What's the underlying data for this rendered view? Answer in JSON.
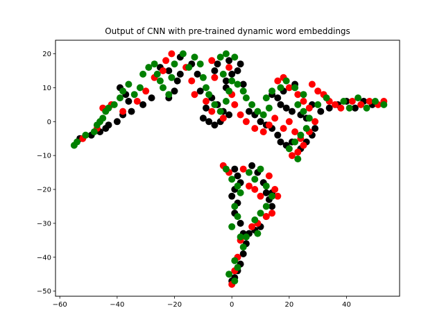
{
  "chart_data": {
    "type": "scatter",
    "title": "Output of CNN with pre-trained dynamic word embeddings",
    "xlabel": "",
    "ylabel": "",
    "xlim": [
      -61.5,
      58.5
    ],
    "ylim": [
      -51.5,
      24
    ],
    "xticks": [
      -60,
      -40,
      -20,
      0,
      20,
      40
    ],
    "yticks": [
      -50,
      -40,
      -30,
      -20,
      -10,
      0,
      10,
      20
    ],
    "grid": false,
    "legend": false,
    "series": [
      {
        "color": "#000000",
        "points": [
          [
            -53,
            -5
          ],
          [
            -49,
            -4
          ],
          [
            -46,
            -3
          ],
          [
            -44,
            -2
          ],
          [
            -43,
            -1
          ],
          [
            -40,
            0
          ],
          [
            -38,
            2
          ],
          [
            -35,
            3
          ],
          [
            -36,
            6
          ],
          [
            -37,
            8
          ],
          [
            -39,
            10
          ],
          [
            -31,
            5
          ],
          [
            -28,
            7
          ],
          [
            -22,
            7
          ],
          [
            -20,
            9
          ],
          [
            -19,
            12
          ],
          [
            -18,
            14
          ],
          [
            -22,
            15
          ],
          [
            -25,
            16
          ],
          [
            -18,
            19
          ],
          [
            -14,
            17
          ],
          [
            -12,
            14
          ],
          [
            -11,
            9
          ],
          [
            -7,
            7
          ],
          [
            -5,
            5
          ],
          [
            -3,
            3
          ],
          [
            -1,
            2
          ],
          [
            -4,
            0
          ],
          [
            -6,
            -1
          ],
          [
            -8,
            0
          ],
          [
            -10,
            1
          ],
          [
            -9,
            4
          ],
          [
            -2,
            10
          ],
          [
            -2,
            12
          ],
          [
            0,
            14
          ],
          [
            2,
            15
          ],
          [
            3,
            17
          ],
          [
            -1,
            18
          ],
          [
            -5,
            17
          ],
          [
            -6,
            15
          ],
          [
            4,
            11
          ],
          [
            6,
            3
          ],
          [
            8,
            2
          ],
          [
            10,
            0
          ],
          [
            12,
            -1
          ],
          [
            14,
            -2
          ],
          [
            16,
            -4
          ],
          [
            17,
            -6
          ],
          [
            19,
            -7
          ],
          [
            21,
            -6
          ],
          [
            24,
            -8
          ],
          [
            26,
            -6
          ],
          [
            28,
            -4
          ],
          [
            26,
            1
          ],
          [
            24,
            2
          ],
          [
            21,
            3
          ],
          [
            19,
            4
          ],
          [
            17,
            5
          ],
          [
            16,
            7
          ],
          [
            14,
            8
          ],
          [
            18,
            9
          ],
          [
            22,
            11
          ],
          [
            28,
            5
          ],
          [
            31,
            3
          ],
          [
            34,
            4
          ],
          [
            37,
            5
          ],
          [
            40,
            6
          ],
          [
            43,
            4
          ],
          [
            46,
            6
          ],
          [
            49,
            5
          ],
          [
            29,
            -2
          ],
          [
            1,
            -14
          ],
          [
            2,
            -16
          ],
          [
            3,
            -18
          ],
          [
            1,
            -20
          ],
          [
            0,
            -22
          ],
          [
            2,
            -24
          ],
          [
            1,
            -27
          ],
          [
            3,
            -30
          ],
          [
            4,
            -33
          ],
          [
            5,
            -36
          ],
          [
            4,
            -39
          ],
          [
            3,
            -42
          ],
          [
            2,
            -44
          ],
          [
            1,
            -46
          ],
          [
            0,
            -47
          ],
          [
            7,
            -13
          ],
          [
            9,
            -15
          ],
          [
            11,
            -18
          ],
          [
            12,
            -21
          ],
          [
            13,
            -23
          ],
          [
            14,
            -21
          ],
          [
            14,
            -25
          ],
          [
            12,
            -28
          ],
          [
            10,
            -31
          ],
          [
            8,
            -32
          ],
          [
            6,
            -33
          ]
        ]
      },
      {
        "color": "#ff0000",
        "points": [
          [
            -52,
            -5
          ],
          [
            -47,
            -2
          ],
          [
            -45,
            4
          ],
          [
            -42,
            5
          ],
          [
            -38,
            3
          ],
          [
            -33,
            6
          ],
          [
            -30,
            9
          ],
          [
            -27,
            13
          ],
          [
            -24,
            15
          ],
          [
            -23,
            18
          ],
          [
            -21,
            20
          ],
          [
            -16,
            16
          ],
          [
            -14,
            12
          ],
          [
            -13,
            8
          ],
          [
            -9,
            6
          ],
          [
            -7,
            3
          ],
          [
            -3,
            1
          ],
          [
            -7,
            18
          ],
          [
            -6,
            13
          ],
          [
            -1,
            16
          ],
          [
            0,
            8
          ],
          [
            1,
            5
          ],
          [
            3,
            2
          ],
          [
            5,
            0
          ],
          [
            8,
            -2
          ],
          [
            11,
            -3
          ],
          [
            13,
            -1
          ],
          [
            15,
            1
          ],
          [
            18,
            -2
          ],
          [
            20,
            0
          ],
          [
            22,
            -3
          ],
          [
            24,
            -5
          ],
          [
            21,
            -10
          ],
          [
            23,
            -9
          ],
          [
            25,
            -7
          ],
          [
            27,
            -3
          ],
          [
            29,
            0
          ],
          [
            27,
            4
          ],
          [
            25,
            6
          ],
          [
            23,
            8
          ],
          [
            20,
            10
          ],
          [
            18,
            13
          ],
          [
            16,
            12
          ],
          [
            28,
            11
          ],
          [
            30,
            9
          ],
          [
            32,
            8
          ],
          [
            34,
            6
          ],
          [
            36,
            5
          ],
          [
            38,
            4
          ],
          [
            42,
            6
          ],
          [
            45,
            5
          ],
          [
            48,
            6
          ],
          [
            51,
            5
          ],
          [
            53,
            6
          ],
          [
            -3,
            -13
          ],
          [
            -1,
            -15
          ],
          [
            4,
            -14
          ],
          [
            6,
            -19
          ],
          [
            8,
            -20
          ],
          [
            10,
            -22
          ],
          [
            13,
            -16
          ],
          [
            15,
            -20
          ],
          [
            16,
            -22
          ],
          [
            14,
            -27
          ],
          [
            12,
            -28
          ],
          [
            9,
            -30
          ],
          [
            7,
            -31
          ],
          [
            3,
            -35
          ],
          [
            2,
            -40
          ],
          [
            1,
            -44
          ],
          [
            0,
            -48
          ]
        ]
      },
      {
        "color": "#008000",
        "points": [
          [
            -55,
            -7
          ],
          [
            -54,
            -6
          ],
          [
            -51,
            -4
          ],
          [
            -48,
            -3
          ],
          [
            -47,
            -1
          ],
          [
            -46,
            0
          ],
          [
            -45,
            1
          ],
          [
            -44,
            3
          ],
          [
            -43,
            4
          ],
          [
            -41,
            5
          ],
          [
            -39,
            7
          ],
          [
            -38,
            9
          ],
          [
            -36,
            11
          ],
          [
            -34,
            8
          ],
          [
            -32,
            10
          ],
          [
            -31,
            14
          ],
          [
            -29,
            16
          ],
          [
            -27,
            17
          ],
          [
            -26,
            14
          ],
          [
            -25,
            12
          ],
          [
            -24,
            10
          ],
          [
            -22,
            8
          ],
          [
            -21,
            13
          ],
          [
            -20,
            17
          ],
          [
            -17,
            20
          ],
          [
            -15,
            16
          ],
          [
            -13,
            19
          ],
          [
            -11,
            17
          ],
          [
            -10,
            13
          ],
          [
            -9,
            10
          ],
          [
            -8,
            8
          ],
          [
            -6,
            5
          ],
          [
            -4,
            3
          ],
          [
            -2,
            6
          ],
          [
            -1,
            9
          ],
          [
            0,
            12
          ],
          [
            -3,
            14
          ],
          [
            -4,
            19
          ],
          [
            -2,
            20
          ],
          [
            1,
            19
          ],
          [
            2,
            11
          ],
          [
            4,
            9
          ],
          [
            5,
            7
          ],
          [
            7,
            5
          ],
          [
            9,
            3
          ],
          [
            11,
            2
          ],
          [
            13,
            4
          ],
          [
            12,
            7
          ],
          [
            14,
            9
          ],
          [
            17,
            10
          ],
          [
            19,
            12
          ],
          [
            22,
            10
          ],
          [
            25,
            8
          ],
          [
            23,
            5
          ],
          [
            25,
            3
          ],
          [
            27,
            1
          ],
          [
            26,
            -2
          ],
          [
            24,
            -4
          ],
          [
            22,
            -6
          ],
          [
            20,
            -8
          ],
          [
            23,
            -11
          ],
          [
            30,
            5
          ],
          [
            33,
            7
          ],
          [
            39,
            6
          ],
          [
            41,
            4
          ],
          [
            44,
            7
          ],
          [
            47,
            4
          ],
          [
            50,
            6
          ],
          [
            53,
            5
          ],
          [
            -2,
            -14
          ],
          [
            0,
            -17
          ],
          [
            2,
            -19
          ],
          [
            3,
            -21
          ],
          [
            1,
            -25
          ],
          [
            2,
            -28
          ],
          [
            0,
            -31
          ],
          [
            3,
            -34
          ],
          [
            4,
            -37
          ],
          [
            1,
            -41
          ],
          [
            2,
            -43
          ],
          [
            -1,
            -45
          ],
          [
            1,
            -47
          ],
          [
            6,
            -15
          ],
          [
            8,
            -17
          ],
          [
            10,
            -14
          ],
          [
            12,
            -19
          ],
          [
            14,
            -22
          ],
          [
            12,
            -25
          ],
          [
            10,
            -27
          ],
          [
            8,
            -29
          ],
          [
            9,
            -33
          ],
          [
            5,
            -34
          ]
        ]
      }
    ]
  }
}
